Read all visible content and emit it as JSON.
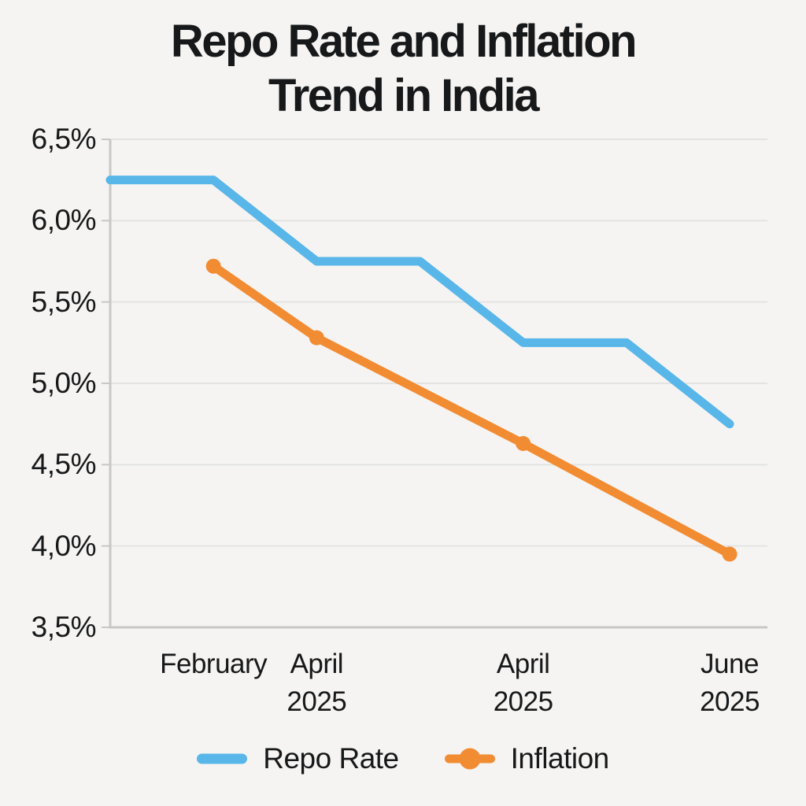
{
  "title": {
    "line1": "Repo Rate and Inflation",
    "line2": "Trend in India"
  },
  "chart_data": {
    "type": "line",
    "title": "Repo Rate and Inflation Trend in India",
    "x_slots": 7,
    "x_labels": [
      {
        "i": 1,
        "lines": [
          "February"
        ]
      },
      {
        "i": 2,
        "lines": [
          "April",
          "2025"
        ]
      },
      {
        "i": 4,
        "lines": [
          "April",
          "2025"
        ]
      },
      {
        "i": 6,
        "lines": [
          "June",
          "2025"
        ]
      }
    ],
    "y_axis": {
      "min": 3.5,
      "max": 6.5,
      "step": 0.5,
      "tick_labels": [
        "6,5%",
        "6,0%",
        "5,5%",
        "5,0%",
        "4,5%",
        "4,0%",
        "3,5%"
      ],
      "unit": "percent",
      "decimal_separator": "comma"
    },
    "series": [
      {
        "name": "Repo Rate",
        "color": "#58B6E9",
        "marker": "none",
        "points": [
          {
            "i": 0,
            "v": 6.25
          },
          {
            "i": 1,
            "v": 6.25
          },
          {
            "i": 2,
            "v": 5.75
          },
          {
            "i": 3,
            "v": 5.75
          },
          {
            "i": 4,
            "v": 5.25
          },
          {
            "i": 5,
            "v": 5.25
          },
          {
            "i": 6,
            "v": 4.75
          }
        ]
      },
      {
        "name": "Inflation",
        "color": "#F28C33",
        "marker": "circle",
        "points": [
          {
            "i": 1,
            "v": 5.72
          },
          {
            "i": 2,
            "v": 5.28
          },
          {
            "i": 4,
            "v": 4.63
          },
          {
            "i": 6,
            "v": 3.95
          }
        ]
      }
    ],
    "grid": true,
    "legend_position": "bottom",
    "colors": {
      "background": "#F5F4F2",
      "gridline": "#E3E3E1",
      "axis": "#C7C7C5",
      "text": "#17181A"
    }
  }
}
